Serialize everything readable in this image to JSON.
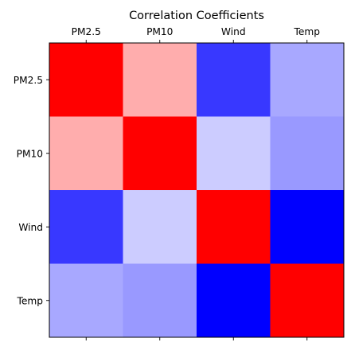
{
  "chart_data": {
    "type": "heatmap",
    "title": "Correlation Coefficients",
    "x_labels": [
      "PM2.5",
      "PM10",
      "Wind",
      "Temp"
    ],
    "y_labels": [
      "PM2.5",
      "PM10",
      "Wind",
      "Temp"
    ],
    "x_tick_position": "top",
    "values": [
      [
        1.0,
        0.32,
        -0.78,
        -0.34
      ],
      [
        0.32,
        1.0,
        -0.2,
        -0.4
      ],
      [
        -0.78,
        -0.2,
        1.0,
        -1.0
      ],
      [
        -0.34,
        -0.4,
        -1.0,
        1.0
      ]
    ],
    "colormap": "bwr",
    "color_range": [
      -1,
      1
    ],
    "colors": {
      "negative": "#0000ff",
      "neutral": "#ffffff",
      "positive": "#ff0000"
    },
    "grid": false
  }
}
